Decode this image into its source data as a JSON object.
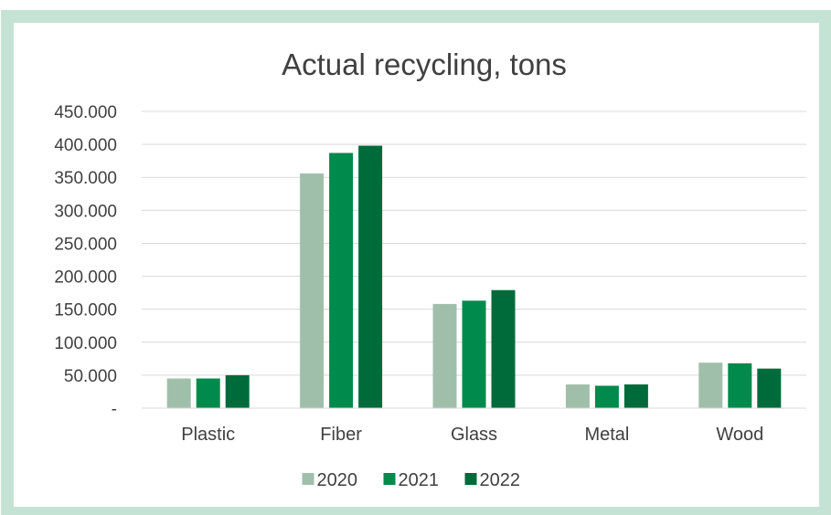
{
  "chart_data": {
    "type": "bar",
    "title": "Actual recycling, tons",
    "xlabel": "",
    "ylabel": "",
    "categories": [
      "Plastic",
      "Fiber",
      "Glass",
      "Metal",
      "Wood"
    ],
    "series": [
      {
        "name": "2020",
        "color": "#a0bfab",
        "values": [
          45000,
          356000,
          158000,
          36000,
          69000
        ]
      },
      {
        "name": "2021",
        "color": "#008a4b",
        "values": [
          45000,
          387000,
          163000,
          34000,
          68000
        ]
      },
      {
        "name": "2022",
        "color": "#006b3a",
        "values": [
          50000,
          398000,
          179000,
          36000,
          60000
        ]
      }
    ],
    "ylim": [
      0,
      450000
    ],
    "yticks": [
      {
        "value": 0,
        "label": "-"
      },
      {
        "value": 50000,
        "label": "50.000"
      },
      {
        "value": 100000,
        "label": "100.000"
      },
      {
        "value": 150000,
        "label": "150.000"
      },
      {
        "value": 200000,
        "label": "200.000"
      },
      {
        "value": 250000,
        "label": "250.000"
      },
      {
        "value": 300000,
        "label": "300.000"
      },
      {
        "value": 350000,
        "label": "350.000"
      },
      {
        "value": 400000,
        "label": "400.000"
      },
      {
        "value": 450000,
        "label": "450.000"
      }
    ],
    "grid": true,
    "legend_position": "bottom"
  },
  "colors": {
    "border": "#c5e3d4",
    "gridline": "#d9d9d9",
    "text": "#404040"
  }
}
